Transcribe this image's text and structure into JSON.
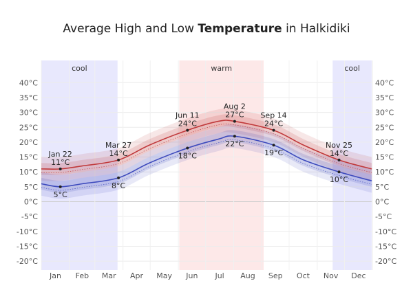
{
  "title": {
    "prefix": "Average High and Low ",
    "bold": "Temperature",
    "suffix": " in Halkidiki"
  },
  "chart_data": {
    "type": "line",
    "title": "Average High and Low Temperature in Halkidiki",
    "x_months": [
      "Jan",
      "Feb",
      "Mar",
      "Apr",
      "May",
      "Jun",
      "Jul",
      "Aug",
      "Sep",
      "Oct",
      "Nov",
      "Dec"
    ],
    "y_ticks": [
      "40°C",
      "35°C",
      "30°C",
      "25°C",
      "20°C",
      "15°C",
      "10°C",
      "5°C",
      "0°C",
      "-5°C",
      "-10°C",
      "-15°C",
      "-20°C"
    ],
    "ylim": [
      -22,
      42
    ],
    "grid": true,
    "seasons": [
      {
        "label": "cool",
        "start_day": 1,
        "end_day": 85,
        "color": "#e8e8fd"
      },
      {
        "label": "warm",
        "start_day": 153,
        "end_day": 246,
        "color": "#fde8e8"
      },
      {
        "label": "cool",
        "start_day": 322,
        "end_day": 365,
        "color": "#e8e8fd"
      }
    ],
    "series": [
      {
        "color": "#c0393b",
        "day": [
          1,
          22,
          46,
          86,
          120,
          162,
          196,
          214,
          257,
          290,
          329,
          365
        ],
        "values": [
          11,
          11,
          12,
          14,
          19,
          24,
          27,
          27,
          24,
          19,
          14,
          11
        ]
      },
      {
        "color": "#3e4bbd",
        "day": [
          1,
          22,
          46,
          86,
          120,
          162,
          196,
          214,
          257,
          290,
          329,
          365
        ],
        "values": [
          6,
          5,
          6,
          8,
          13,
          18,
          21,
          22,
          19,
          14,
          10,
          7
        ]
      }
    ],
    "annotations": [
      {
        "date": "Jan 22",
        "value": "11°C",
        "temp": 11,
        "day": 22,
        "pos": "above"
      },
      {
        "date": "",
        "value": "5°C",
        "temp": 5,
        "day": 22,
        "pos": "below"
      },
      {
        "date": "Mar 27",
        "value": "14°C",
        "temp": 14,
        "day": 86,
        "pos": "above"
      },
      {
        "date": "",
        "value": "8°C",
        "temp": 8,
        "day": 86,
        "pos": "below"
      },
      {
        "date": "Jun 11",
        "value": "24°C",
        "temp": 24,
        "day": 162,
        "pos": "above"
      },
      {
        "date": "",
        "value": "18°C",
        "temp": 18,
        "day": 162,
        "pos": "below"
      },
      {
        "date": "Aug 2",
        "value": "27°C",
        "temp": 27,
        "day": 214,
        "pos": "above"
      },
      {
        "date": "",
        "value": "22°C",
        "temp": 22,
        "day": 214,
        "pos": "below"
      },
      {
        "date": "Sep 14",
        "value": "24°C",
        "temp": 24,
        "day": 257,
        "pos": "above"
      },
      {
        "date": "",
        "value": "19°C",
        "temp": 19,
        "day": 257,
        "pos": "below"
      },
      {
        "date": "Nov 25",
        "value": "14°C",
        "temp": 14,
        "day": 329,
        "pos": "above"
      },
      {
        "date": "",
        "value": "10°C",
        "temp": 10,
        "day": 329,
        "pos": "below"
      }
    ]
  }
}
